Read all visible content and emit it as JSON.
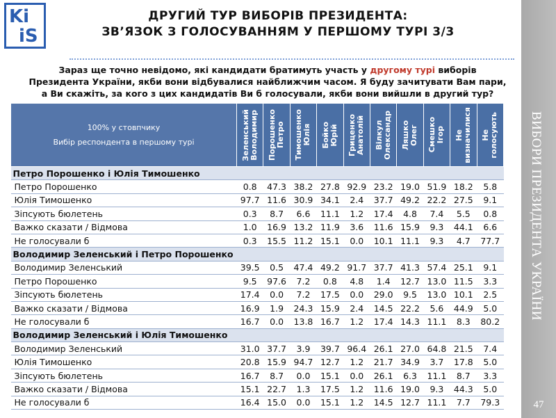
{
  "logo": [
    "Ki",
    "iS"
  ],
  "header": {
    "title": [
      "ДРУГИЙ ТУР ВИБОРІВ ПРЕЗИДЕНТА:",
      "ЗВ’ЯЗОК З ГОЛОСУВАННЯМ У ПЕРШОМУ ТУРІ 3/3"
    ]
  },
  "question": {
    "before": "Зараз ще точно невідомо, які кандидати братимуть участь у ",
    "highlight": "другому турі",
    "after": " виборів Президента України, якби вони відбувалися найближчим часом. Я буду зачитувати Вам пари, а Ви скажіть, за кого з цих кандидатів Ви б голосували, якби вони вийшли в другий тур?"
  },
  "sidebar": {
    "text": "ВИБОРИ ПРЕЗИДЕНТА УКРАЇНИ",
    "page": "47"
  },
  "table": {
    "corner": [
      "100% у стовпчику",
      "Вибір респондента в першому турі"
    ],
    "columns": [
      [
        "Зеленський",
        "Володимир"
      ],
      [
        "Порошенко",
        "Петро"
      ],
      [
        "Тимошенко",
        "Юлія"
      ],
      [
        "Бойко",
        "Юрій"
      ],
      [
        "Гриценко",
        "Анатолій"
      ],
      [
        "Вілкул",
        "Олександр"
      ],
      [
        "Ляшко",
        "Олег"
      ],
      [
        "Смешко",
        "Ігор"
      ],
      [
        "Не",
        "визначилися"
      ],
      [
        "Не",
        "голосують"
      ]
    ],
    "sections": [
      {
        "title": "Петро Порошенко і Юлія Тимошенко",
        "rows": [
          [
            "Петро Порошенко",
            "0.8",
            "47.3",
            "38.2",
            "27.8",
            "92.9",
            "23.2",
            "19.0",
            "51.9",
            "18.2",
            "5.8"
          ],
          [
            "Юлія  Тимошенко",
            "97.7",
            "11.6",
            "30.9",
            "34.1",
            "2.4",
            "37.7",
            "49.2",
            "22.2",
            "27.5",
            "9.1"
          ],
          [
            "Зіпсують бюлетень",
            "0.3",
            "8.7",
            "6.6",
            "11.1",
            "1.2",
            "17.4",
            "4.8",
            "7.4",
            "5.5",
            "0.8"
          ],
          [
            "Важко сказати / Відмова",
            "1.0",
            "16.9",
            "13.2",
            "11.9",
            "3.6",
            "11.6",
            "15.9",
            "9.3",
            "44.1",
            "6.6"
          ],
          [
            "Не голосували б",
            "0.3",
            "15.5",
            "11.2",
            "15.1",
            "0.0",
            "10.1",
            "11.1",
            "9.3",
            "4.7",
            "77.7"
          ]
        ]
      },
      {
        "title": "Володимир Зеленський і Петро Порошенко",
        "rows": [
          [
            "Володимир Зеленський",
            "39.5",
            "0.5",
            "47.4",
            "49.2",
            "91.7",
            "37.7",
            "41.3",
            "57.4",
            "25.1",
            "9.1"
          ],
          [
            "Петро Порошенко",
            "9.5",
            "97.6",
            "7.2",
            "0.8",
            "4.8",
            "1.4",
            "12.7",
            "13.0",
            "11.5",
            "3.3"
          ],
          [
            "Зіпсують бюлетень",
            "17.4",
            "0.0",
            "7.2",
            "17.5",
            "0.0",
            "29.0",
            "9.5",
            "13.0",
            "10.1",
            "2.5"
          ],
          [
            "Важко сказати / Відмова",
            "16.9",
            "1.9",
            "24.3",
            "15.9",
            "2.4",
            "14.5",
            "22.2",
            "5.6",
            "44.9",
            "5.0"
          ],
          [
            "Не голосували б",
            "16.7",
            "0.0",
            "13.8",
            "16.7",
            "1.2",
            "17.4",
            "14.3",
            "11.1",
            "8.3",
            "80.2"
          ]
        ]
      },
      {
        "title": "Володимир Зеленський і Юлія  Тимошенко",
        "rows": [
          [
            "Володимир Зеленський",
            "31.0",
            "37.7",
            "3.9",
            "39.7",
            "96.4",
            "26.1",
            "27.0",
            "64.8",
            "21.5",
            "7.4"
          ],
          [
            "Юлія  Тимошенко",
            "20.8",
            "15.9",
            "94.7",
            "12.7",
            "1.2",
            "21.7",
            "34.9",
            "3.7",
            "17.8",
            "5.0"
          ],
          [
            "Зіпсують бюлетень",
            "16.7",
            "8.7",
            "0.0",
            "15.1",
            "0.0",
            "26.1",
            "6.3",
            "11.1",
            "8.7",
            "3.3"
          ],
          [
            "Важко сказати / Відмова",
            "15.1",
            "22.7",
            "1.3",
            "17.5",
            "1.2",
            "11.6",
            "19.0",
            "9.3",
            "44.3",
            "5.0"
          ],
          [
            "Не голосували б",
            "16.4",
            "15.0",
            "0.0",
            "15.1",
            "1.2",
            "14.5",
            "12.7",
            "11.1",
            "7.7",
            "79.3"
          ]
        ]
      }
    ]
  }
}
